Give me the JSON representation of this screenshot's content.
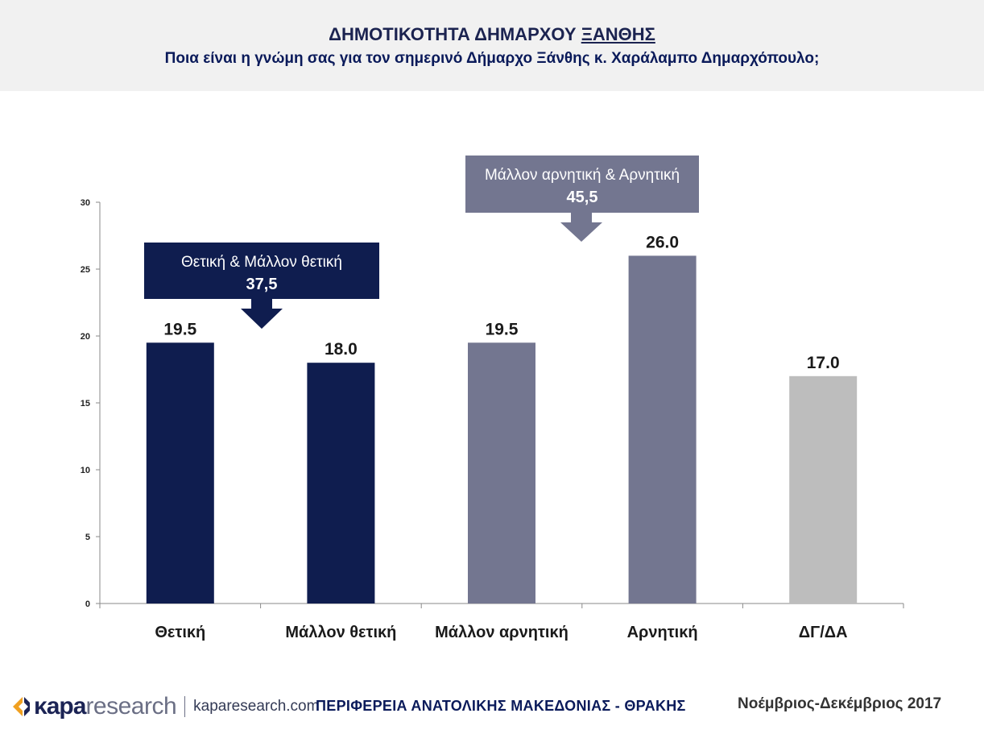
{
  "header": {
    "title_pre": "ΔΗΜΟΤΙΚΟΤΗΤΑ ΔΗΜΑΡΧΟΥ ",
    "title_under": "ΞΑΝΘΗΣ",
    "subtitle": "Ποια είναι η γνώμη σας για τον σημερινό Δήμαρχο Ξάνθης κ. Χαράλαμπο Δημαρχόπουλο;"
  },
  "chart_data": {
    "type": "bar",
    "categories": [
      "Θετική",
      "Μάλλον θετική",
      "Μάλλον αρνητική",
      "Αρνητική",
      "ΔΓ/ΔΑ"
    ],
    "values": [
      19.5,
      18.0,
      19.5,
      26.0,
      17.0
    ],
    "value_labels": [
      "19.5",
      "18.0",
      "19.5",
      "26.0",
      "17.0"
    ],
    "bar_colors": [
      "#0f1d4f",
      "#0f1d4f",
      "#737690",
      "#737690",
      "#bdbdbd"
    ],
    "ylim": [
      0,
      30
    ],
    "yticks": [
      0,
      5,
      10,
      15,
      20,
      25,
      30
    ],
    "grid": false,
    "annotations": [
      {
        "text": "Θετική & Μάλλον θετική",
        "value": "37,5",
        "color": "#0f1d4f",
        "categories": [
          0,
          1
        ]
      },
      {
        "text": "Μάλλον αρνητική & Αρνητική",
        "value": "45,5",
        "color": "#737690",
        "categories": [
          2,
          3
        ]
      }
    ]
  },
  "footer": {
    "logo_kapa": "κapa",
    "logo_research": "research",
    "logo_url": "kaparesearch.com",
    "region": "ΠΕΡΙΦΕΡΕΙΑ ΑΝΑΤΟΛΙΚΗΣ ΜΑΚΕΔΟΝΙΑΣ - ΘΡΑΚΗΣ",
    "date": "Νοέμβριος-Δεκέμβριος 2017"
  }
}
